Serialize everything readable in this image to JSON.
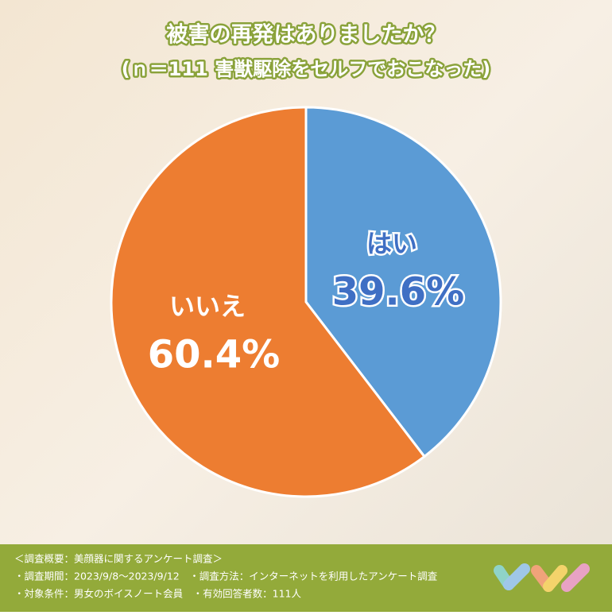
{
  "chart_data": {
    "type": "pie",
    "title": "被害の再発はありましたか？",
    "subtitle": "(ｎ＝111 害獣駆除をセルフでおこなった)",
    "categories": [
      "はい",
      "いいえ"
    ],
    "values": [
      39.6,
      60.4
    ],
    "value_labels": [
      "39.6%",
      "60.4%"
    ],
    "colors": [
      "#5b9bd5",
      "#ed7d31"
    ],
    "notes": [
      "＜調査概要：美顔器に関するアンケート調査＞",
      "・調査期間：2023/9/8～2023/9/12　・調査方法：インターネットを利用したアンケート調査",
      "・対象条件：男女のボイスノート会員　・有効回答者数：111人"
    ]
  }
}
